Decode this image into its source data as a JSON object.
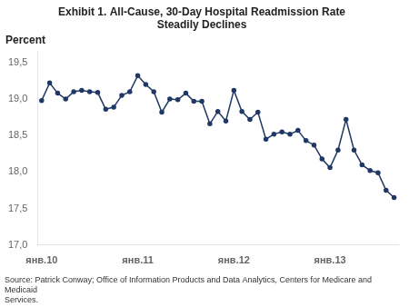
{
  "chart_data": {
    "type": "line",
    "title": "Exhibit 1. All-Cause, 30-Day Hospital Readmission Rate\nSteadily Declines",
    "ylabel": "Percent",
    "annotations": [
      "Source: Patrick Conway; Office of Information Products and Data Analytics, Centers for Medicare and Medicaid\nServices."
    ],
    "categories": [
      "янв.10",
      null,
      null,
      null,
      null,
      null,
      null,
      null,
      null,
      null,
      null,
      null,
      "янв.11",
      null,
      null,
      null,
      null,
      null,
      null,
      null,
      null,
      null,
      null,
      null,
      "янв.12",
      null,
      null,
      null,
      null,
      null,
      null,
      null,
      null,
      null,
      null,
      null,
      "янв.13",
      null,
      null,
      null,
      null,
      null,
      null,
      null,
      null
    ],
    "values": [
      18.98,
      19.22,
      19.08,
      19.0,
      19.1,
      19.12,
      19.1,
      19.09,
      18.86,
      18.89,
      19.05,
      19.1,
      19.32,
      19.2,
      19.1,
      18.82,
      19.0,
      18.99,
      19.08,
      18.97,
      18.97,
      18.66,
      18.83,
      18.7,
      19.12,
      18.83,
      18.72,
      18.82,
      18.45,
      18.52,
      18.55,
      18.52,
      18.57,
      18.43,
      18.37,
      18.18,
      18.06,
      18.3,
      18.72,
      18.3,
      18.1,
      18.02,
      17.99,
      17.75,
      17.65
    ],
    "color": "#1F3864",
    "marker": "circle",
    "line_style": "solid",
    "ylim": [
      17.0,
      19.65
    ],
    "yticks": [
      {
        "value": 17.0,
        "label": "17,0"
      },
      {
        "value": 17.5,
        "label": "17,5"
      },
      {
        "value": 18.0,
        "label": "18,0"
      },
      {
        "value": 18.5,
        "label": "18,5"
      },
      {
        "value": 19.0,
        "label": "19,0"
      },
      {
        "value": 19.5,
        "label": "19,5"
      }
    ],
    "grid": false,
    "legend": false
  }
}
